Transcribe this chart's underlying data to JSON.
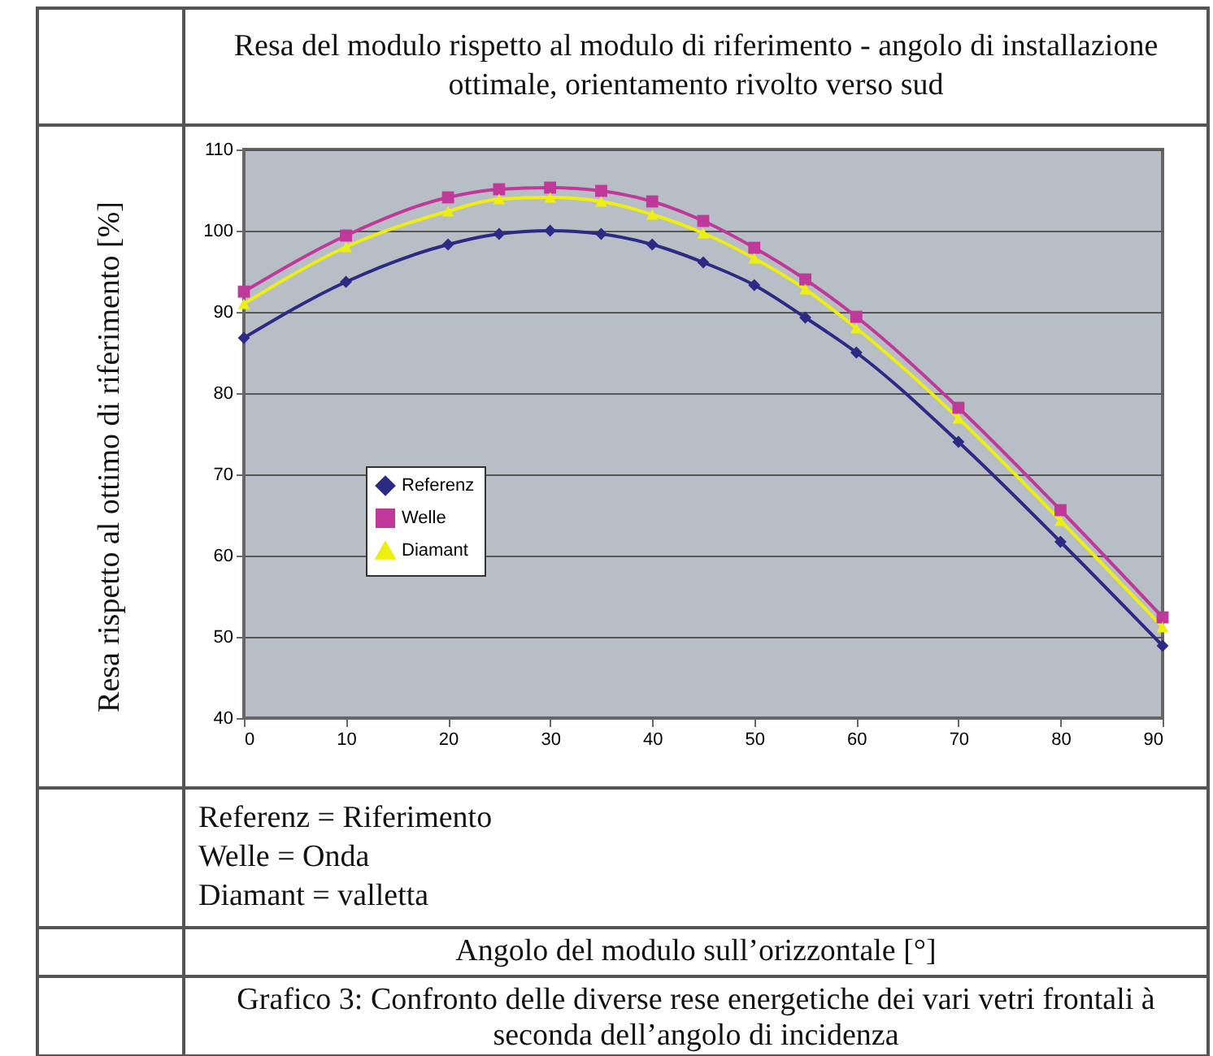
{
  "chart_data": {
    "type": "line",
    "title": "Resa del modulo rispetto al modulo di riferimento - angolo di installazione ottimale, orientamento rivolto verso sud",
    "ylabel": "Resa rispetto al ottimo di riferimento [%]",
    "annotations": [
      "Referenz = Riferimento",
      "Welle = Onda",
      "Diamant = valletta",
      "Angolo del modulo sull’orizzontale [°]",
      "Grafico 3: Confronto delle diverse rese energetiche dei vari vetri frontali à seconda dell’angolo di incidenza"
    ],
    "x": [
      0,
      10,
      20,
      25,
      30,
      35,
      40,
      45,
      50,
      55,
      60,
      70,
      80,
      90
    ],
    "series": [
      {
        "name": "Referenz",
        "color": "#2b2b86",
        "marker": "diamond",
        "values": [
          86.8,
          93.7,
          98.3,
          99.6,
          100,
          99.6,
          98.3,
          96.1,
          93.3,
          89.3,
          85.0,
          74.0,
          61.7,
          48.9
        ]
      },
      {
        "name": "Welle",
        "color": "#c0399a",
        "marker": "square",
        "values": [
          92.5,
          99.4,
          104.1,
          105.1,
          105.3,
          104.9,
          103.6,
          101.2,
          97.9,
          94.0,
          89.4,
          78.2,
          65.6,
          52.4
        ]
      },
      {
        "name": "Diamant",
        "color": "#eeee10",
        "marker": "triangle",
        "values": [
          91.0,
          98.0,
          102.4,
          103.9,
          104.1,
          103.6,
          102.0,
          99.7,
          96.6,
          92.8,
          88.0,
          76.9,
          64.3,
          51.2
        ]
      }
    ],
    "xlim": [
      0,
      90
    ],
    "xticks": [
      0,
      10,
      20,
      30,
      40,
      50,
      60,
      70,
      80,
      90
    ],
    "ylim": [
      40,
      110
    ],
    "yticks": [
      40,
      50,
      60,
      70,
      80,
      90,
      100,
      110
    ],
    "grid": "y",
    "legend": "left",
    "line_style": "solid"
  }
}
